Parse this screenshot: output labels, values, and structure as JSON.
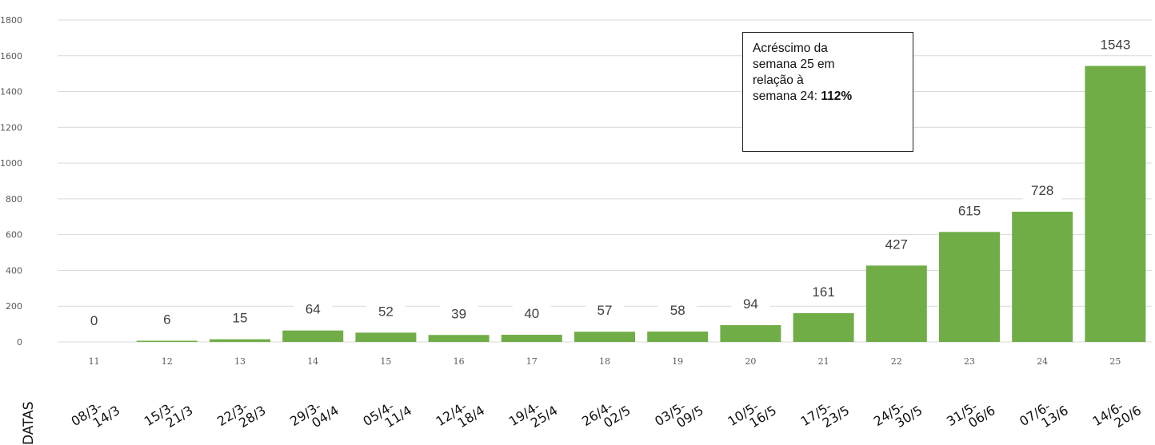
{
  "chart_data": {
    "type": "bar",
    "categories": [
      "11",
      "12",
      "13",
      "14",
      "15",
      "16",
      "17",
      "18",
      "19",
      "20",
      "21",
      "22",
      "23",
      "24",
      "25"
    ],
    "date_ranges": [
      "08/3-14/3",
      "15/3-21/3",
      "22/3-28/3",
      "29/3-04/4",
      "05/4-11/4",
      "12/4-18/4",
      "19/4-25/4",
      "26/4-02/5",
      "03/5-09/5",
      "10/5-16/5",
      "17/5-23/5",
      "24/5-30/5",
      "31/5-06/6",
      "07/6-13/6",
      "14/6-20/6"
    ],
    "values": [
      0,
      6,
      15,
      64,
      52,
      39,
      40,
      57,
      58,
      94,
      161,
      427,
      615,
      728,
      1543
    ],
    "ylim": [
      0,
      1800
    ],
    "yticks": [
      0,
      200,
      400,
      600,
      800,
      1000,
      1200,
      1400,
      1600,
      1800
    ],
    "dates_label": "DATAS",
    "bar_color": "#70ad47",
    "grid": true,
    "annotation": {
      "text": "Acréscimo da semana 25 em relação à semana 24:",
      "lines": [
        "Acréscimo da",
        "semana 25 em",
        "relação à",
        "semana 24: "
      ],
      "highlight": "112%"
    }
  }
}
